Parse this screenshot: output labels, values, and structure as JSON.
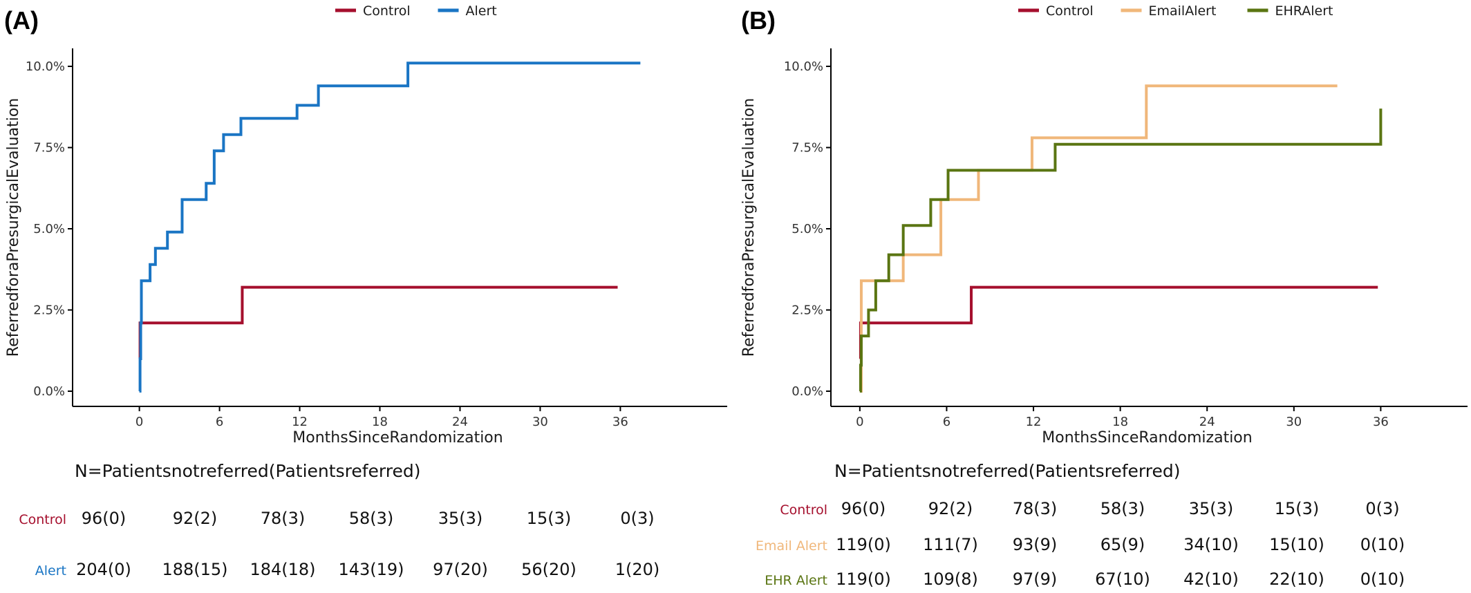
{
  "chart_data": [
    {
      "panel": "(A)",
      "type": "line",
      "step": true,
      "xlabel": "MonthsSinceRandomization",
      "ylabel": "ReferredforaPresurgicalEvaluation",
      "xlim": [
        -5,
        44
      ],
      "ylim": [
        0,
        0.1
      ],
      "xticks": [
        0,
        6,
        12,
        18,
        24,
        30,
        36
      ],
      "xtick_labels": [
        "0",
        "6",
        "12",
        "18",
        "24",
        "30",
        "36"
      ],
      "yticks": [
        0,
        0.025,
        0.05,
        0.075,
        0.1
      ],
      "ytick_labels": [
        "0.0%",
        "2.5%",
        "5.0%",
        "7.5%",
        "10.0%"
      ],
      "grid": false,
      "legend": "top-center",
      "series": [
        {
          "name": "Control",
          "color": "#a50f2d",
          "x": [
            0,
            0.05,
            7.7,
            35.8
          ],
          "y": [
            0.01,
            0.021,
            0.032,
            0.032
          ]
        },
        {
          "name": "Alert",
          "color": "#1a75c4",
          "x": [
            0,
            0.05,
            0.1,
            0.15,
            0.3,
            0.8,
            1.2,
            2.1,
            3.2,
            5.0,
            5.6,
            6.3,
            7.6,
            11.8,
            13.4,
            20.1,
            37.5
          ],
          "y": [
            0.0,
            0.01,
            0.021,
            0.034,
            0.034,
            0.039,
            0.044,
            0.049,
            0.059,
            0.064,
            0.074,
            0.079,
            0.084,
            0.088,
            0.094,
            0.101,
            0.101
          ]
        }
      ],
      "risk_table": {
        "title": "N=Patientsnotreferred(Patientsreferred)",
        "rows": [
          {
            "label": "Control",
            "color": "#a50f2d",
            "values": [
              "96(0)",
              "92(2)",
              "78(3)",
              "58(3)",
              "35(3)",
              "15(3)",
              "0(3)"
            ]
          },
          {
            "label": "Alert",
            "color": "#1a75c4",
            "values": [
              "204(0)",
              "188(15)",
              "184(18)",
              "143(19)",
              "97(20)",
              "56(20)",
              "1(20)"
            ]
          }
        ]
      }
    },
    {
      "panel": "(B)",
      "type": "line",
      "step": true,
      "xlabel": "MonthsSinceRandomization",
      "ylabel": "ReferredforaPresurgicalEvaluation",
      "xlim": [
        -2,
        42
      ],
      "ylim": [
        0,
        0.1
      ],
      "xticks": [
        0,
        6,
        12,
        18,
        24,
        30,
        36
      ],
      "xtick_labels": [
        "0",
        "6",
        "12",
        "18",
        "24",
        "30",
        "36"
      ],
      "yticks": [
        0,
        0.025,
        0.05,
        0.075,
        0.1
      ],
      "ytick_labels": [
        "0.0%",
        "2.5%",
        "5.0%",
        "7.5%",
        "10.0%"
      ],
      "grid": false,
      "legend": "top-center",
      "series": [
        {
          "name": "Control",
          "color": "#a50f2d",
          "x": [
            0,
            0.05,
            7.7,
            35.8
          ],
          "y": [
            0.01,
            0.021,
            0.032,
            0.032
          ]
        },
        {
          "name": "EmailAlert",
          "color": "#f0b77a",
          "x": [
            0,
            0.1,
            3.0,
            5.6,
            8.2,
            11.9,
            19.8,
            33.0
          ],
          "y": [
            0.0,
            0.034,
            0.042,
            0.059,
            0.068,
            0.078,
            0.094,
            0.094
          ]
        },
        {
          "name": "EHRAlert",
          "color": "#5a7512",
          "x": [
            0,
            0.05,
            0.1,
            0.6,
            1.1,
            2.0,
            3.0,
            4.9,
            6.1,
            13.5,
            36.0
          ],
          "y": [
            0.0,
            0.008,
            0.017,
            0.025,
            0.034,
            0.042,
            0.051,
            0.059,
            0.068,
            0.076,
            0.087
          ]
        }
      ],
      "risk_table": {
        "title": "N=Patientsnotreferred(Patientsreferred)",
        "rows": [
          {
            "label": "Control",
            "color": "#a50f2d",
            "values": [
              "96(0)",
              "92(2)",
              "78(3)",
              "58(3)",
              "35(3)",
              "15(3)",
              "0(3)"
            ]
          },
          {
            "label": "Email Alert",
            "color": "#f0b77a",
            "values": [
              "119(0)",
              "111(7)",
              "93(9)",
              "65(9)",
              "34(10)",
              "15(10)",
              "0(10)"
            ]
          },
          {
            "label": "EHR Alert",
            "color": "#5a7512",
            "values": [
              "119(0)",
              "109(8)",
              "97(9)",
              "67(10)",
              "42(10)",
              "22(10)",
              "0(10)"
            ]
          }
        ]
      }
    }
  ]
}
